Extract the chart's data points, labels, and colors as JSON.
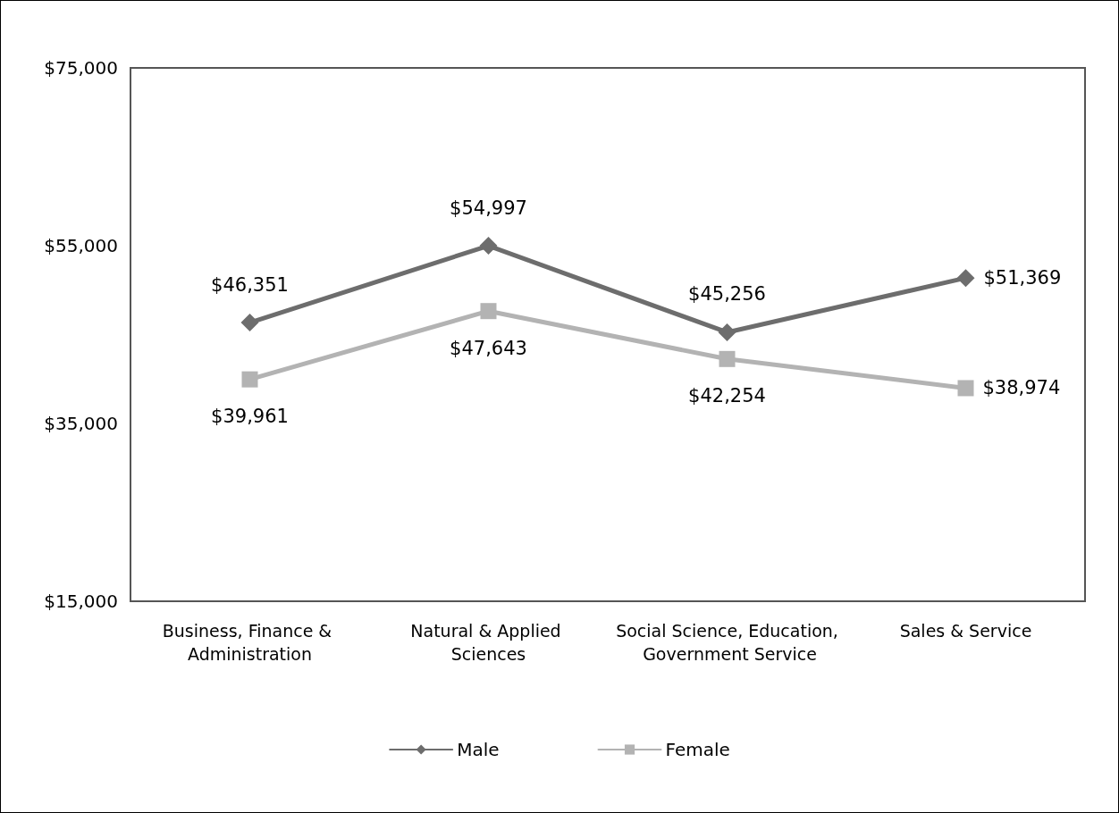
{
  "chart_data": {
    "type": "line",
    "categories": [
      "Business, Finance & Administration",
      "Natural & Applied Sciences",
      "Social Science, Education, Government Service",
      "Sales & Service"
    ],
    "series": [
      {
        "name": "Male",
        "color": "#6d6d6d",
        "marker": "diamond",
        "values": [
          46351,
          54997,
          45256,
          51369
        ],
        "value_labels": [
          "$46,351",
          "$54,997",
          "$45,256",
          "$51,369"
        ]
      },
      {
        "name": "Female",
        "color": "#b3b3b3",
        "marker": "square",
        "values": [
          39961,
          47643,
          42254,
          38974
        ],
        "value_labels": [
          "$39,961",
          "$47,643",
          "$42,254",
          "$38,974"
        ]
      }
    ],
    "ylim": [
      15000,
      75000
    ],
    "yticks": [
      {
        "value": 15000,
        "label": "$15,000"
      },
      {
        "value": 35000,
        "label": "$35,000"
      },
      {
        "value": 55000,
        "label": "$55,000"
      },
      {
        "value": 75000,
        "label": "$75,000"
      }
    ],
    "grid": false,
    "legend": "bottom",
    "line_style": "solid"
  }
}
